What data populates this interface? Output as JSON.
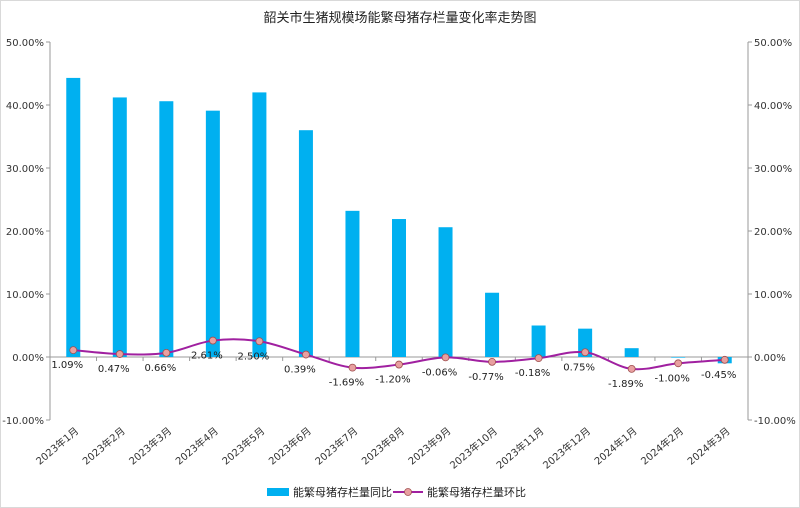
{
  "chart_data": {
    "type": "bar",
    "title": "韶关市生猪规模场能繁母猪存栏量变化率走势图",
    "categories": [
      "2023年1月",
      "2023年2月",
      "2023年3月",
      "2023年4月",
      "2023年5月",
      "2023年6月",
      "2023年7月",
      "2023年8月",
      "2023年9月",
      "2023年10月",
      "2023年11月",
      "2023年12月",
      "2024年1月",
      "2024年2月",
      "2024年3月"
    ],
    "series": [
      {
        "name": "能繁母猪存栏量同比",
        "type": "bar",
        "color": "#00b0f0",
        "values": [
          44.3,
          41.2,
          40.6,
          39.1,
          42.0,
          36.0,
          23.2,
          21.9,
          20.6,
          10.2,
          5.0,
          4.5,
          1.4,
          -0.1,
          -1.0
        ]
      },
      {
        "name": "能繁母猪存栏量环比",
        "type": "line",
        "color": "#a020a0",
        "marker_color": "#e8a0a0",
        "values": [
          1.09,
          0.47,
          0.66,
          2.61,
          2.5,
          0.39,
          -1.69,
          -1.2,
          -0.06,
          -0.77,
          -0.18,
          0.75,
          -1.89,
          -1.0,
          -0.45
        ],
        "labels": [
          "1.09%",
          "0.47%",
          "0.66%",
          "2.61%",
          "2.50%",
          "0.39%",
          "-1.69%",
          "-1.20%",
          "-0.06%",
          "-0.77%",
          "-0.18%",
          "0.75%",
          "-1.89%",
          "-1.00%",
          "-0.45%"
        ]
      }
    ],
    "ylim": [
      -10,
      50
    ],
    "y_ticks": [
      "-10.00%",
      "0.00%",
      "10.00%",
      "20.00%",
      "30.00%",
      "40.00%",
      "50.00%"
    ],
    "y_tick_values": [
      -10,
      0,
      10,
      20,
      30,
      40,
      50
    ],
    "secondary_axis": true,
    "grid": false,
    "legend_position": "bottom"
  }
}
